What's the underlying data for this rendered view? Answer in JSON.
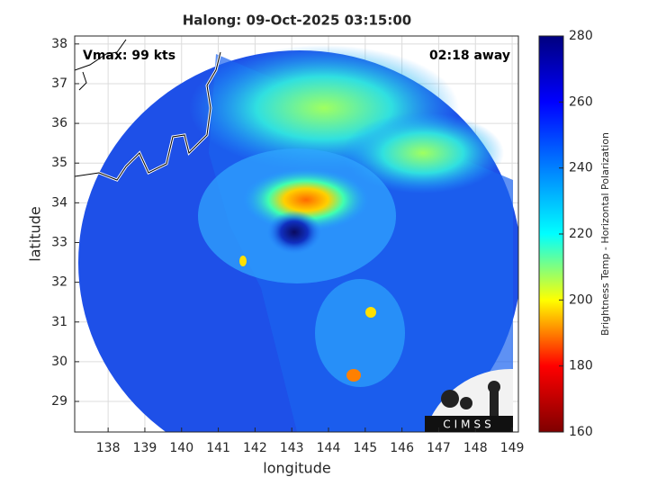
{
  "chart_data": {
    "type": "map",
    "title": "Halong: 09-Oct-2025 03:15:00",
    "annotations": [
      "Vmax: 99 kts",
      "02:18 away"
    ],
    "x_label": "longitude",
    "y_label": "latitude",
    "xlim": [
      137.09,
      149.17
    ],
    "xticks": [
      138,
      139,
      140,
      141,
      142,
      143,
      144,
      145,
      146,
      147,
      148,
      149
    ],
    "ylim": [
      28.23,
      38.2
    ],
    "yticks": [
      29,
      30,
      31,
      32,
      33,
      34,
      35,
      36,
      37,
      38
    ],
    "grid": true,
    "colorbar": {
      "label": "Brightness Temp - Horizontal Polarization",
      "lim": [
        160,
        280
      ],
      "ticks": [
        160,
        180,
        200,
        220,
        240,
        260,
        280
      ],
      "colors": [
        "#7f0000",
        "#ff0000",
        "#ffff00",
        "#00ffff",
        "#0080ff",
        "#0000ff",
        "#00007f"
      ]
    },
    "logo": "CIMSS"
  }
}
